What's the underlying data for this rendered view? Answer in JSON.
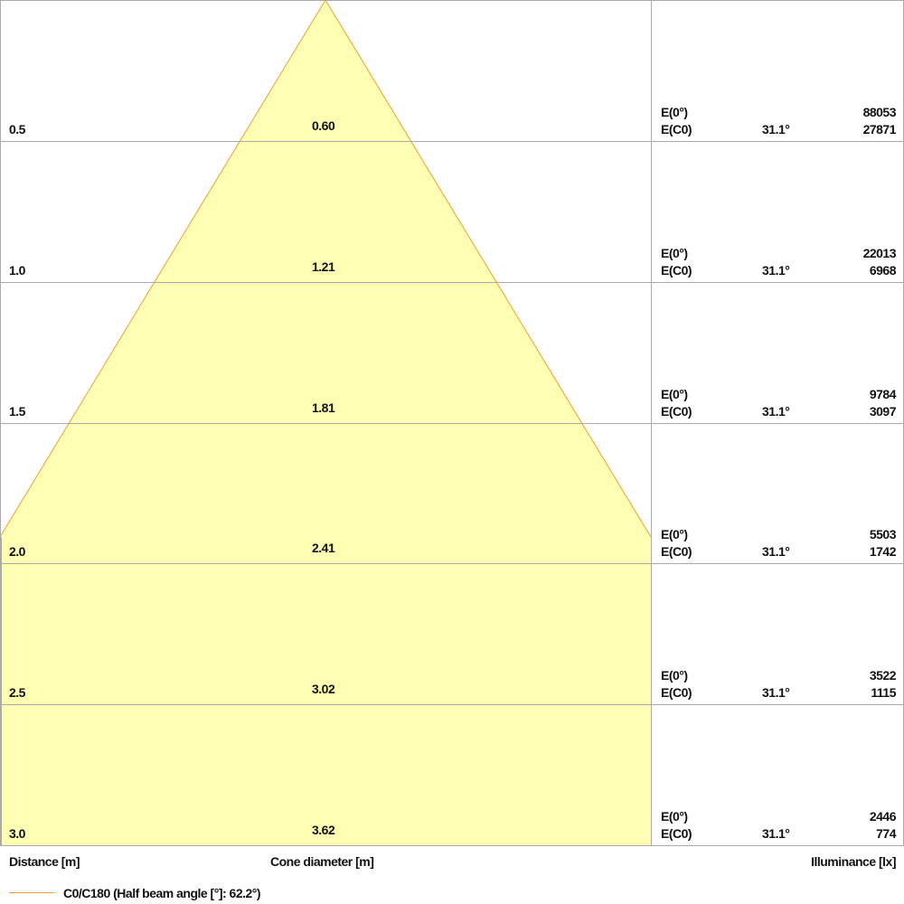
{
  "chart_data": {
    "type": "cone-diagram",
    "colors": {
      "cone_fill": "#ffffb4",
      "cone_edge": "#f39c32",
      "grid": "#aaaaaa"
    },
    "rows": [
      {
        "distance": "0.5",
        "diameter": "0.60",
        "e0": "88053",
        "ec0_angle": "31.1°",
        "ec0": "27871"
      },
      {
        "distance": "1.0",
        "diameter": "1.21",
        "e0": "22013",
        "ec0_angle": "31.1°",
        "ec0": "6968"
      },
      {
        "distance": "1.5",
        "diameter": "1.81",
        "e0": "9784",
        "ec0_angle": "31.1°",
        "ec0": "3097"
      },
      {
        "distance": "2.0",
        "diameter": "2.41",
        "e0": "5503",
        "ec0_angle": "31.1°",
        "ec0": "1742"
      },
      {
        "distance": "2.5",
        "diameter": "3.02",
        "e0": "3522",
        "ec0_angle": "31.1°",
        "ec0": "1115"
      },
      {
        "distance": "3.0",
        "diameter": "3.62",
        "e0": "2446",
        "ec0_angle": "31.1°",
        "ec0": "774"
      }
    ],
    "e0_label": "E(0°)",
    "ec0_label": "E(C0)",
    "xlabel_distance": "Distance [m]",
    "xlabel_diameter": "Cone diameter [m]",
    "xlabel_illuminance": "Illuminance [lx]",
    "legend": "C0/C180 (Half beam angle [°]: 62.2°)"
  }
}
